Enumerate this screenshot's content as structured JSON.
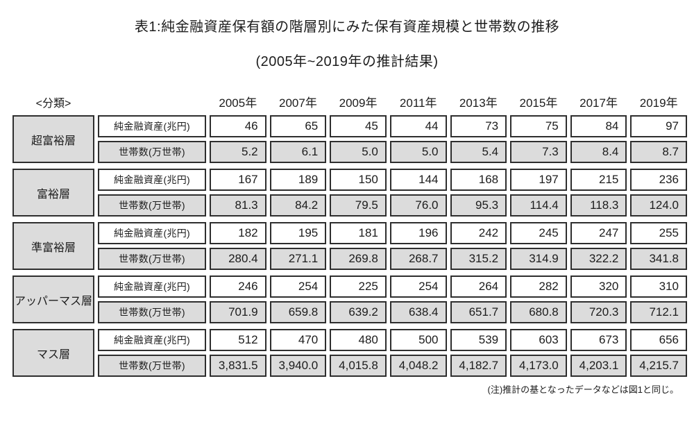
{
  "title": "表1:純金融資産保有額の階層別にみた保有資産規模と世帯数の推移",
  "subtitle": "(2005年~2019年の推計結果)",
  "classification_label": "<分類>",
  "footnote": "(注)推計の基となったデータなどは図1と同じ。",
  "colors": {
    "cell_fill_gray": "#dcdcdc",
    "cell_fill_white": "#ffffff",
    "border": "#2e2e2e",
    "text": "#1c1c1c",
    "background": "#ffffff"
  },
  "chart_data": {
    "type": "table",
    "title": "表1:純金融資産保有額の階層別にみた保有資産規模と世帯数の推移",
    "subtitle": "(2005年~2019年の推計結果)",
    "columns": [
      "2005年",
      "2007年",
      "2009年",
      "2011年",
      "2013年",
      "2015年",
      "2017年",
      "2019年"
    ],
    "row_labels": {
      "assets": "純金融資産(兆円)",
      "households": "世帯数(万世帯)"
    },
    "groups": [
      {
        "category": "超富裕層",
        "assets": [
          "46",
          "65",
          "45",
          "44",
          "73",
          "75",
          "84",
          "97"
        ],
        "households": [
          "5.2",
          "6.1",
          "5.0",
          "5.0",
          "5.4",
          "7.3",
          "8.4",
          "8.7"
        ]
      },
      {
        "category": "富裕層",
        "assets": [
          "167",
          "189",
          "150",
          "144",
          "168",
          "197",
          "215",
          "236"
        ],
        "households": [
          "81.3",
          "84.2",
          "79.5",
          "76.0",
          "95.3",
          "114.4",
          "118.3",
          "124.0"
        ]
      },
      {
        "category": "準富裕層",
        "assets": [
          "182",
          "195",
          "181",
          "196",
          "242",
          "245",
          "247",
          "255"
        ],
        "households": [
          "280.4",
          "271.1",
          "269.8",
          "268.7",
          "315.2",
          "314.9",
          "322.2",
          "341.8"
        ]
      },
      {
        "category": "アッパーマス層",
        "assets": [
          "246",
          "254",
          "225",
          "254",
          "264",
          "282",
          "320",
          "310"
        ],
        "households": [
          "701.9",
          "659.8",
          "639.2",
          "638.4",
          "651.7",
          "680.8",
          "720.3",
          "712.1"
        ]
      },
      {
        "category": "マス層",
        "assets": [
          "512",
          "470",
          "480",
          "500",
          "539",
          "603",
          "673",
          "656"
        ],
        "households": [
          "3,831.5",
          "3,940.0",
          "4,015.8",
          "4,048.2",
          "4,182.7",
          "4,173.0",
          "4,203.1",
          "4,215.7"
        ]
      }
    ],
    "note": "(注)推計の基となったデータなどは図1と同じ。"
  }
}
